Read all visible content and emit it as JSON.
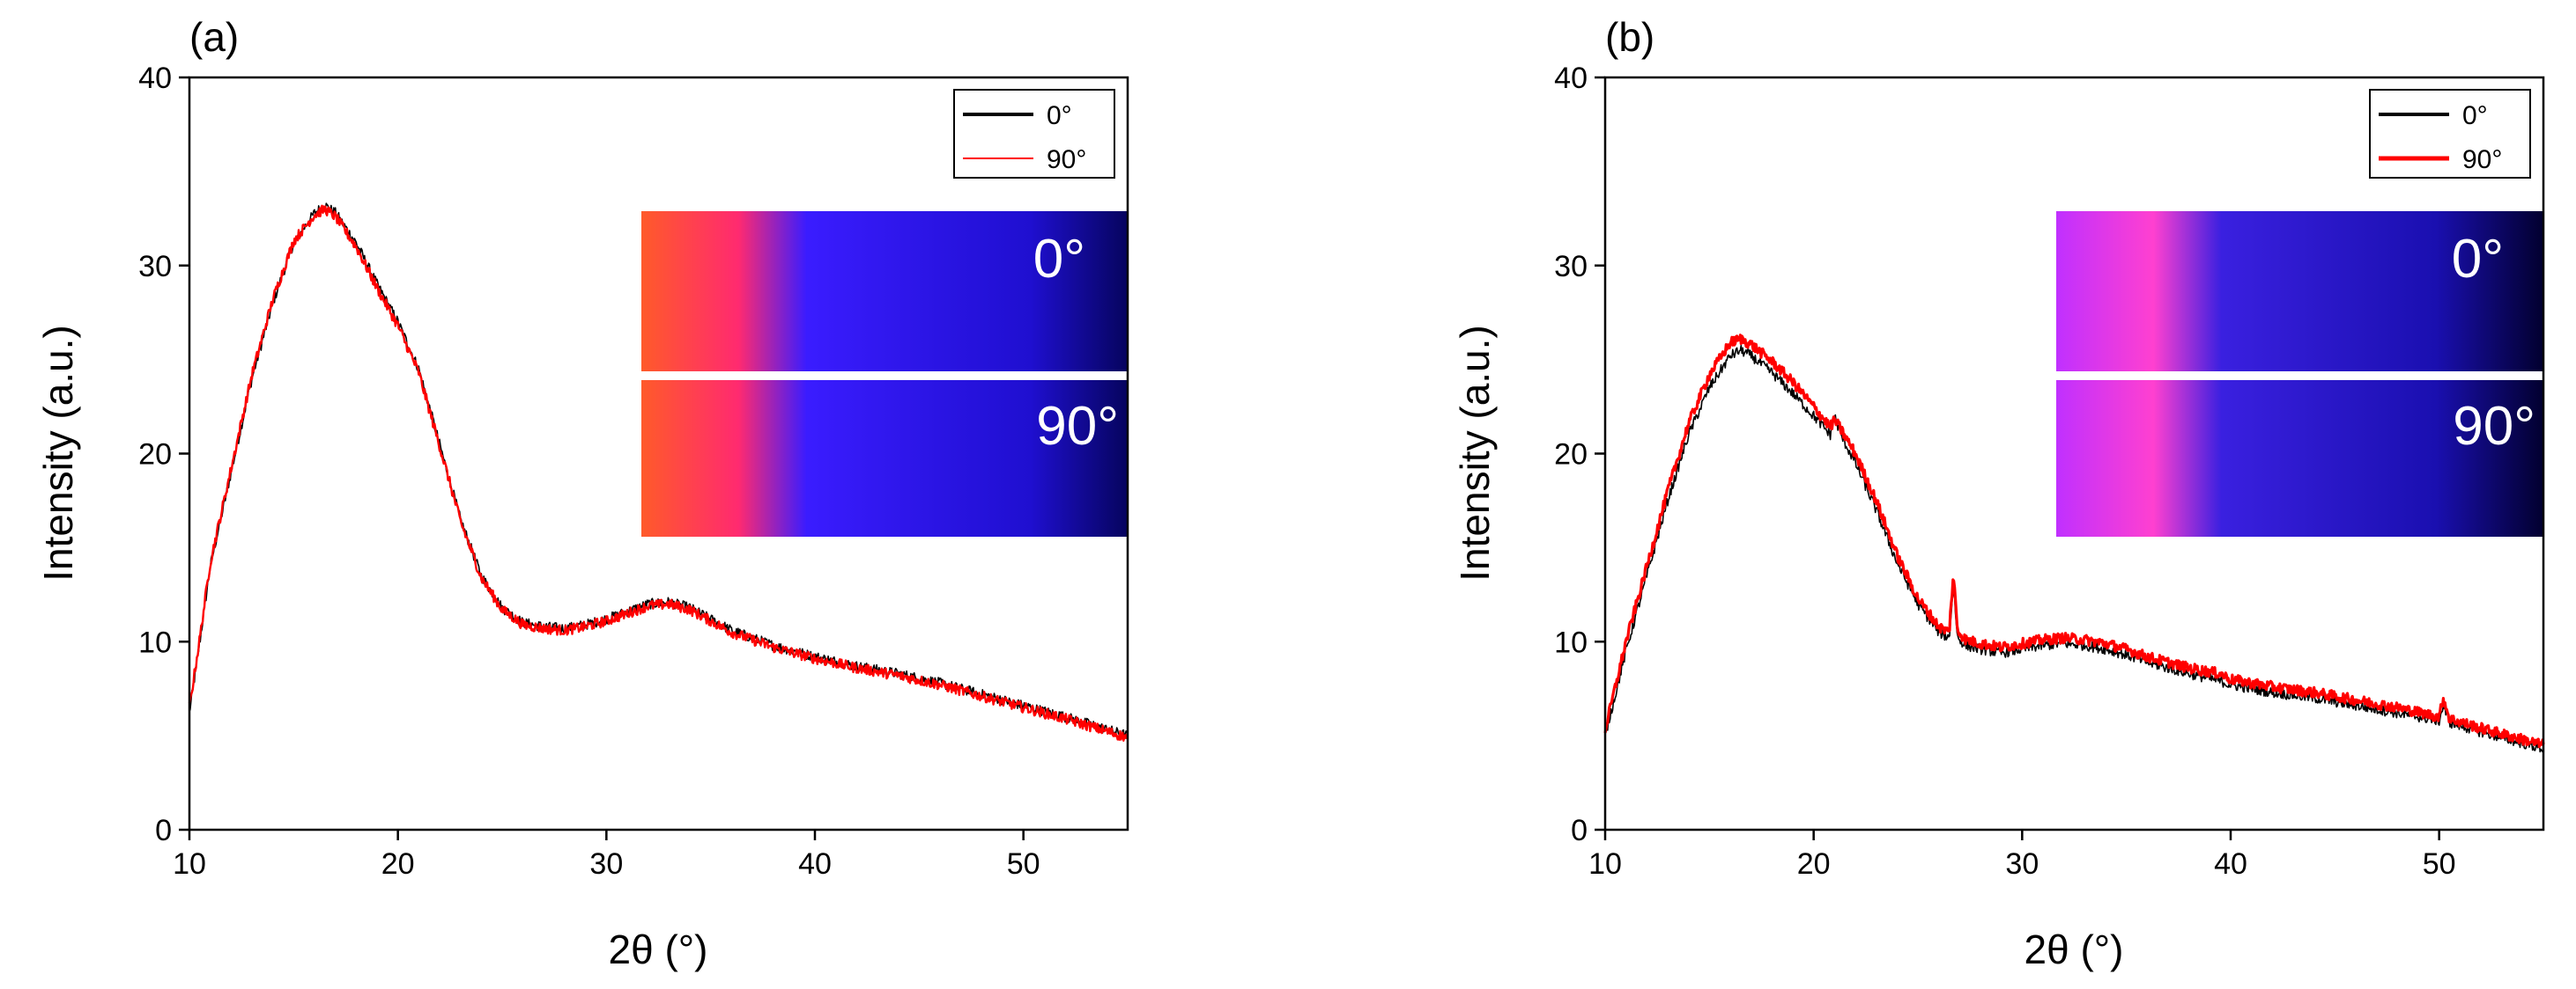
{
  "chart_data": [
    {
      "type": "line",
      "panel_label": "(a)",
      "xlabel": "2θ (°)",
      "ylabel": "Intensity (a.u.)",
      "xlim": [
        10,
        55
      ],
      "ylim": [
        0,
        40
      ],
      "xticks": [
        10,
        20,
        30,
        40,
        50
      ],
      "yticks": [
        0,
        10,
        20,
        30,
        40
      ],
      "legend": {
        "placement": "top-right",
        "entries": [
          "0°",
          "90°"
        ]
      },
      "series": [
        {
          "name": "0°",
          "color": "#000000",
          "x": [
            10,
            10.5,
            11,
            12,
            13,
            14,
            15,
            16,
            16.5,
            17,
            18,
            19,
            20,
            21,
            22,
            23,
            24,
            25,
            26,
            27,
            28,
            29,
            30,
            31,
            32,
            33,
            34,
            35,
            36,
            38,
            40,
            42,
            44,
            46,
            48,
            50,
            52,
            55
          ],
          "y": [
            6.2,
            10,
            14,
            19,
            24,
            28,
            31.2,
            32.8,
            33.2,
            32.8,
            31.2,
            29,
            27,
            24.5,
            20.5,
            16.5,
            13.5,
            11.8,
            11.0,
            10.8,
            10.7,
            10.9,
            11.2,
            11.6,
            12.0,
            12.1,
            11.8,
            11.2,
            10.6,
            9.8,
            9.2,
            8.7,
            8.3,
            7.8,
            7.2,
            6.6,
            6.0,
            5.0
          ]
        },
        {
          "name": "90°",
          "color": "#ff0000",
          "x": [
            10,
            10.5,
            11,
            12,
            13,
            14,
            15,
            16,
            16.5,
            17,
            18,
            19,
            20,
            21,
            22,
            23,
            24,
            25,
            26,
            27,
            28,
            29,
            30,
            31,
            32,
            33,
            34,
            35,
            36,
            38,
            40,
            42,
            44,
            46,
            48,
            50,
            52,
            55
          ],
          "y": [
            6.5,
            10.2,
            14.2,
            19.2,
            24.2,
            28.2,
            31.3,
            32.7,
            33.0,
            32.6,
            31.0,
            28.8,
            26.8,
            24.3,
            20.4,
            16.4,
            13.4,
            11.7,
            10.9,
            10.7,
            10.6,
            10.8,
            11.1,
            11.5,
            11.9,
            12.0,
            11.7,
            11.1,
            10.5,
            9.7,
            9.1,
            8.6,
            8.2,
            7.7,
            7.1,
            6.5,
            5.9,
            4.9
          ]
        }
      ],
      "inset_labels": [
        "0°",
        "90°"
      ],
      "inset_colors": [
        "#ff5a2a",
        "#ff2a70",
        "#3a1cff",
        "#1f0fd0",
        "#06045e"
      ]
    },
    {
      "type": "line",
      "panel_label": "(b)",
      "xlabel": "2θ (°)",
      "ylabel": "Intensity (a.u.)",
      "xlim": [
        10,
        55
      ],
      "ylim": [
        0,
        40
      ],
      "xticks": [
        10,
        20,
        30,
        40,
        50
      ],
      "yticks": [
        0,
        10,
        20,
        30,
        40
      ],
      "legend": {
        "placement": "top-right",
        "entries": [
          "0°",
          "90°"
        ]
      },
      "series": [
        {
          "name": "0°",
          "color": "#000000",
          "x": [
            10,
            11,
            12,
            13,
            14,
            15,
            16,
            16.5,
            17,
            18,
            19,
            20,
            20.8,
            21,
            21.3,
            22,
            23,
            24,
            25,
            26,
            26.5,
            26.7,
            26.9,
            27.3,
            28,
            29,
            30,
            31,
            32,
            33,
            34,
            35,
            36,
            38,
            39.5,
            40,
            42,
            44,
            46,
            48,
            50,
            50.2,
            50.5,
            52,
            55
          ],
          "y": [
            5.0,
            9.5,
            13.5,
            17.5,
            21.0,
            23.5,
            25.2,
            25.5,
            25.2,
            24.3,
            23.2,
            22.0,
            21.0,
            22.0,
            21.0,
            19.5,
            17.0,
            14.2,
            12.0,
            10.5,
            10.2,
            13.0,
            10.2,
            9.8,
            9.6,
            9.4,
            9.6,
            9.8,
            9.9,
            9.8,
            9.6,
            9.3,
            8.9,
            8.3,
            7.9,
            7.7,
            7.3,
            7.0,
            6.6,
            6.2,
            5.8,
            6.6,
            5.7,
            5.2,
            4.3
          ]
        },
        {
          "name": "90°",
          "color": "#ff0000",
          "x": [
            10,
            11,
            12,
            13,
            14,
            15,
            16,
            16.5,
            17,
            18,
            19,
            20,
            20.8,
            21,
            21.3,
            22,
            23,
            24,
            25,
            26,
            26.5,
            26.7,
            26.9,
            27.3,
            28,
            29,
            30,
            31,
            32,
            33,
            34,
            35,
            36,
            38,
            39.5,
            40,
            42,
            44,
            46,
            48,
            50,
            50.2,
            50.5,
            52,
            55
          ],
          "y": [
            5.3,
            10.0,
            14.0,
            18.0,
            21.6,
            24.2,
            25.9,
            26.1,
            25.8,
            24.9,
            23.8,
            22.5,
            21.4,
            21.8,
            21.3,
            20.0,
            17.5,
            14.6,
            12.3,
            10.8,
            10.5,
            13.6,
            10.6,
            10.1,
            9.9,
            9.7,
            9.9,
            10.1,
            10.2,
            10.1,
            9.9,
            9.6,
            9.2,
            8.6,
            8.3,
            8.0,
            7.6,
            7.3,
            6.9,
            6.5,
            6.0,
            7.0,
            5.9,
            5.4,
            4.5
          ]
        }
      ],
      "inset_labels": [
        "0°",
        "90°"
      ],
      "inset_colors": [
        "#c030ff",
        "#ff40d0",
        "#3a20e0",
        "#1a0fb0",
        "#020030"
      ]
    }
  ]
}
